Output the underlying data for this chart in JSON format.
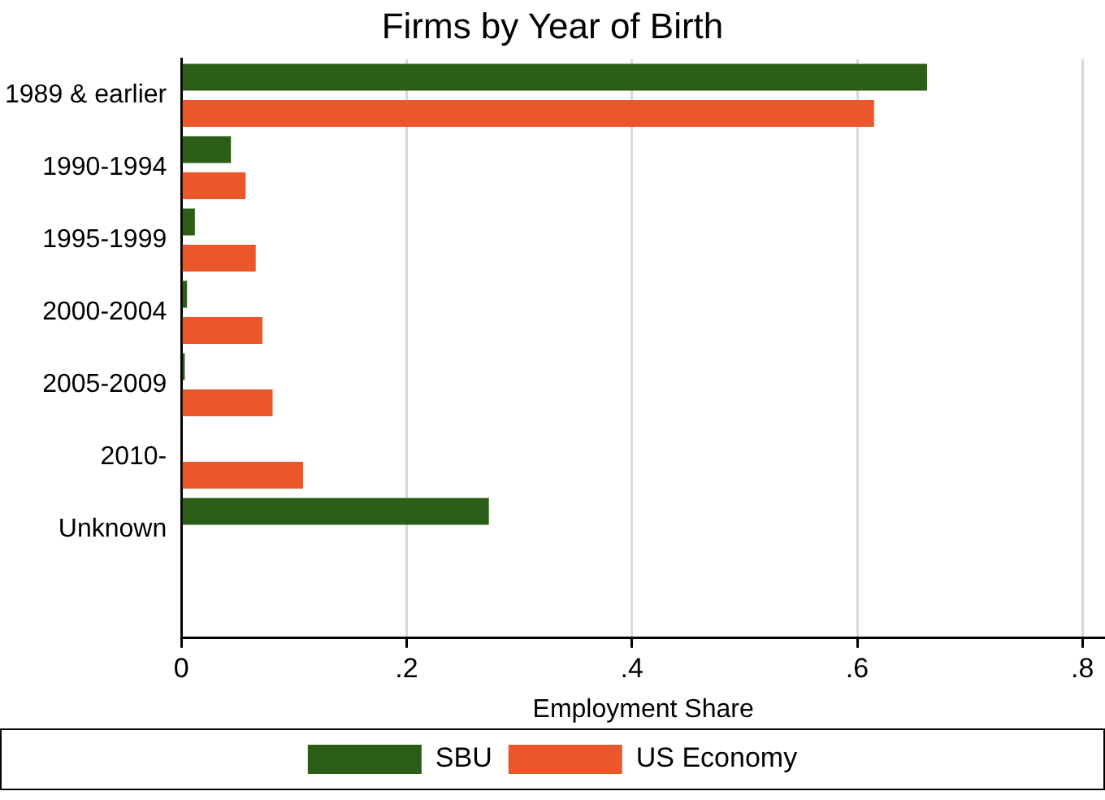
{
  "chart_data": {
    "type": "bar",
    "orientation": "horizontal",
    "title": "Firms by Year of Birth",
    "xlabel": "Employment Share",
    "categories": [
      "1989 & earlier",
      "1990-1994",
      "1995-1999",
      "2000-2004",
      "2005-2009",
      "2010-",
      "Unknown"
    ],
    "series": [
      {
        "name": "SBU",
        "color": "#2d5e18",
        "values": [
          0.662,
          0.044,
          0.012,
          0.005,
          0.003,
          null,
          0.273
        ]
      },
      {
        "name": "US Economy",
        "color": "#e9572b",
        "values": [
          0.615,
          0.057,
          0.066,
          0.072,
          0.081,
          0.108,
          null
        ]
      }
    ],
    "xlim": [
      0,
      0.82
    ],
    "xticks": [
      {
        "value": 0,
        "label": "0"
      },
      {
        "value": 0.2,
        "label": ".2"
      },
      {
        "value": 0.4,
        "label": ".4"
      },
      {
        "value": 0.6,
        "label": ".6"
      },
      {
        "value": 0.8,
        "label": ".8"
      }
    ],
    "grid": "x",
    "legend": "bottom"
  }
}
